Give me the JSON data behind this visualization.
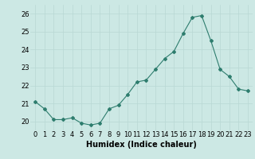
{
  "x": [
    0,
    1,
    2,
    3,
    4,
    5,
    6,
    7,
    8,
    9,
    10,
    11,
    12,
    13,
    14,
    15,
    16,
    17,
    18,
    19,
    20,
    21,
    22,
    23
  ],
  "y": [
    21.1,
    20.7,
    20.1,
    20.1,
    20.2,
    19.9,
    19.8,
    19.9,
    20.7,
    20.9,
    21.5,
    22.2,
    22.3,
    22.9,
    23.5,
    23.9,
    24.9,
    25.8,
    25.9,
    24.5,
    22.9,
    22.5,
    21.8,
    21.7
  ],
  "line_color": "#2e7d6e",
  "marker": "D",
  "marker_size": 2,
  "bg_color": "#cce8e4",
  "grid_color": "#b8d8d4",
  "xlabel": "Humidex (Indice chaleur)",
  "xlabel_fontsize": 7,
  "tick_fontsize": 6,
  "ylim": [
    19.5,
    26.5
  ],
  "yticks": [
    20,
    21,
    22,
    23,
    24,
    25,
    26
  ],
  "xtick_labels": [
    "0",
    "1",
    "2",
    "3",
    "4",
    "5",
    "6",
    "7",
    "8",
    "9",
    "10",
    "11",
    "12",
    "13",
    "14",
    "15",
    "16",
    "17",
    "18",
    "19",
    "20",
    "21",
    "22",
    "23"
  ]
}
